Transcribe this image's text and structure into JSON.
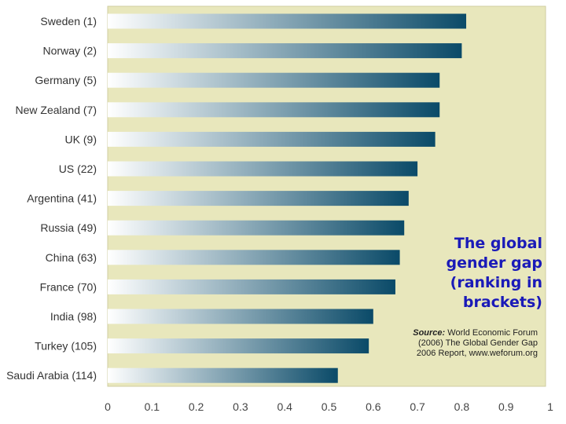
{
  "chart_data": {
    "type": "bar",
    "orientation": "horizontal",
    "categories": [
      "Sweden (1)",
      "Norway (2)",
      "Germany (5)",
      "New Zealand (7)",
      "UK (9)",
      "US (22)",
      "Argentina (41)",
      "Russia (49)",
      "China (63)",
      "France (70)",
      "India (98)",
      "Turkey (105)",
      "Saudi Arabia (114)"
    ],
    "values": [
      0.81,
      0.8,
      0.75,
      0.75,
      0.74,
      0.7,
      0.68,
      0.67,
      0.66,
      0.65,
      0.6,
      0.59,
      0.52
    ],
    "xlim": [
      0,
      1
    ],
    "xticks": [
      "0",
      "0.1",
      "0.2",
      "0.3",
      "0.4",
      "0.5",
      "0.6",
      "0.7",
      "0.8",
      "0.9",
      "1"
    ],
    "title": "The global gender gap (ranking in brackets)",
    "source_label": "Source:",
    "source_text": "World Economic Forum (2006) The Global Gender Gap 2006 Report, www.weforum.org",
    "colors": {
      "plot_bg": "#e8e7bc",
      "bar_start": "#ffffff",
      "bar_end": "#0a4a68",
      "title": "#1a1ab8"
    }
  }
}
